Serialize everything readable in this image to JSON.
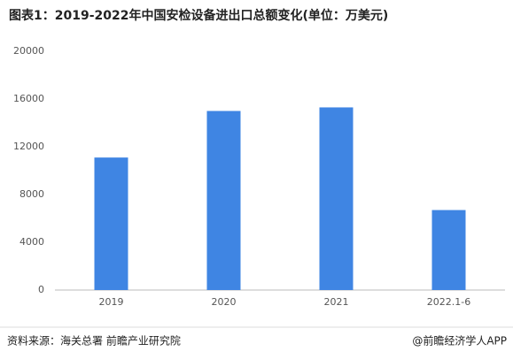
{
  "chart_data": {
    "type": "bar",
    "title": "图表1：2019-2022年中国安检设备进出口总额变化(单位：万美元)",
    "categories": [
      "2019",
      "2020",
      "2021",
      "2022.1-6"
    ],
    "values": [
      11100,
      15000,
      15300,
      6700
    ],
    "color": "#3f85e3",
    "ylim": [
      0,
      20000
    ],
    "yticks": [
      0,
      4000,
      8000,
      12000,
      16000,
      20000
    ],
    "grid": false
  },
  "footer": {
    "source": "资料来源：海关总署 前瞻产业研究院",
    "credit": "@前瞻经济学人APP"
  }
}
